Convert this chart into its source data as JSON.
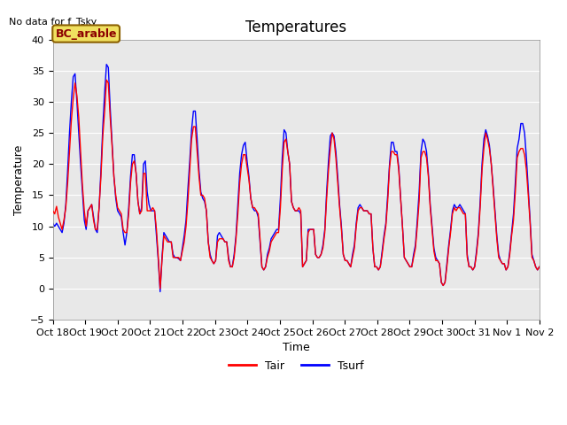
{
  "title": "Temperatures",
  "xlabel": "Time",
  "ylabel": "Temperature",
  "top_left_text": "No data for f_Tsky",
  "legend_box_label": "BC_arable",
  "legend_entries": [
    "Tair",
    "Tsurf"
  ],
  "ylim": [
    -5,
    40
  ],
  "yticks": [
    -5,
    0,
    5,
    10,
    15,
    20,
    25,
    30,
    35,
    40
  ],
  "xtick_labels": [
    "Oct 18",
    "Oct 19",
    "Oct 20",
    "Oct 21",
    "Oct 22",
    "Oct 23",
    "Oct 24",
    "Oct 25",
    "Oct 26",
    "Oct 27",
    "Oct 28",
    "Oct 29",
    "Oct 30",
    "Oct 31",
    "Nov 1",
    "Nov 2"
  ],
  "background_color": "#ffffff",
  "axes_facecolor": "#e8e8e8",
  "tair_data": [
    12.5,
    12.0,
    13.2,
    11.5,
    10.5,
    9.5,
    11.0,
    13.0,
    17.0,
    22.0,
    27.0,
    30.5,
    33.0,
    31.0,
    27.5,
    22.0,
    16.5,
    12.5,
    10.0,
    12.5,
    13.0,
    13.5,
    11.0,
    9.5,
    9.5,
    13.0,
    18.0,
    24.5,
    28.5,
    33.5,
    33.0,
    27.5,
    23.0,
    18.0,
    15.0,
    13.0,
    12.5,
    12.0,
    9.5,
    9.0,
    9.0,
    12.0,
    17.0,
    20.0,
    20.5,
    18.5,
    14.0,
    12.0,
    12.5,
    18.5,
    18.5,
    12.5,
    12.5,
    12.5,
    13.0,
    12.5,
    9.5,
    5.0,
    0.0,
    4.5,
    8.5,
    8.0,
    7.5,
    7.5,
    7.5,
    5.0,
    5.0,
    5.0,
    5.0,
    4.5,
    6.0,
    7.5,
    10.0,
    14.0,
    19.0,
    24.0,
    26.0,
    26.0,
    22.0,
    18.0,
    15.0,
    15.0,
    14.5,
    12.5,
    7.5,
    5.0,
    4.5,
    4.0,
    4.5,
    7.5,
    8.0,
    8.0,
    8.0,
    7.5,
    7.5,
    4.5,
    3.5,
    3.5,
    5.0,
    8.0,
    12.0,
    17.0,
    20.0,
    21.5,
    21.5,
    19.5,
    17.5,
    14.5,
    13.0,
    13.0,
    12.5,
    12.0,
    8.0,
    3.5,
    3.0,
    3.5,
    5.0,
    6.0,
    7.5,
    8.0,
    8.5,
    9.0,
    9.0,
    13.0,
    19.0,
    23.5,
    24.0,
    22.0,
    20.0,
    14.0,
    13.0,
    12.5,
    12.5,
    13.0,
    12.5,
    3.5,
    4.0,
    4.5,
    9.0,
    9.5,
    9.5,
    9.5,
    5.5,
    5.0,
    5.0,
    5.5,
    6.5,
    9.0,
    14.5,
    19.0,
    22.5,
    25.0,
    24.0,
    21.0,
    17.0,
    13.0,
    9.5,
    5.5,
    4.5,
    4.5,
    4.0,
    3.5,
    5.0,
    6.5,
    10.0,
    12.5,
    13.0,
    13.0,
    12.5,
    12.5,
    12.5,
    12.0,
    12.0,
    6.5,
    3.5,
    3.5,
    3.0,
    3.5,
    5.5,
    8.0,
    10.0,
    14.0,
    19.5,
    22.0,
    22.0,
    21.5,
    21.5,
    19.0,
    14.5,
    10.0,
    5.0,
    4.5,
    4.0,
    3.5,
    3.5,
    5.0,
    6.5,
    10.0,
    14.0,
    21.0,
    22.0,
    22.0,
    21.0,
    18.0,
    13.0,
    9.5,
    6.0,
    4.5,
    4.5,
    4.0,
    1.0,
    0.5,
    1.0,
    3.5,
    6.5,
    9.0,
    12.0,
    13.0,
    12.5,
    13.0,
    13.0,
    12.5,
    12.0,
    12.0,
    5.0,
    3.5,
    3.5,
    3.0,
    3.5,
    5.5,
    8.5,
    13.0,
    19.0,
    22.5,
    25.0,
    24.0,
    22.5,
    20.0,
    16.0,
    12.0,
    8.0,
    5.0,
    4.5,
    4.0,
    4.0,
    3.0,
    3.5,
    5.5,
    8.5,
    11.0,
    15.5,
    21.0,
    22.0,
    22.5,
    22.5,
    21.5,
    19.0,
    15.0,
    10.5,
    5.0,
    4.5,
    3.5,
    3.0,
    3.5
  ],
  "tsurf_data": [
    10.5,
    10.0,
    10.5,
    10.0,
    9.5,
    9.0,
    10.5,
    13.5,
    19.0,
    25.0,
    30.0,
    34.0,
    34.5,
    30.0,
    25.0,
    20.0,
    15.5,
    11.0,
    9.5,
    12.5,
    13.0,
    13.5,
    11.5,
    9.5,
    9.0,
    13.0,
    19.0,
    26.0,
    31.5,
    36.0,
    35.5,
    29.0,
    23.5,
    18.0,
    14.5,
    12.5,
    12.0,
    11.5,
    9.0,
    7.0,
    9.0,
    13.0,
    18.0,
    21.5,
    21.5,
    18.5,
    14.0,
    12.0,
    13.0,
    20.0,
    20.5,
    15.5,
    13.5,
    12.5,
    12.5,
    12.5,
    8.5,
    4.5,
    -0.5,
    5.0,
    9.0,
    8.5,
    8.0,
    7.5,
    7.5,
    5.5,
    5.0,
    5.0,
    4.8,
    4.5,
    6.5,
    8.5,
    11.0,
    16.0,
    20.5,
    25.5,
    28.5,
    28.5,
    24.0,
    19.0,
    15.5,
    14.5,
    14.0,
    12.5,
    7.5,
    5.5,
    4.5,
    4.0,
    4.5,
    8.5,
    9.0,
    8.5,
    8.0,
    7.5,
    7.5,
    5.0,
    3.5,
    3.5,
    5.5,
    8.5,
    13.5,
    18.5,
    21.5,
    23.0,
    23.5,
    20.5,
    18.0,
    14.5,
    13.0,
    12.5,
    12.5,
    11.5,
    7.5,
    3.5,
    3.0,
    3.5,
    5.5,
    6.5,
    8.0,
    8.5,
    9.0,
    9.5,
    9.5,
    14.5,
    21.0,
    25.5,
    25.0,
    22.0,
    20.0,
    14.0,
    13.0,
    12.5,
    12.5,
    12.5,
    12.0,
    3.5,
    4.0,
    4.5,
    9.5,
    9.5,
    9.5,
    9.5,
    5.5,
    5.0,
    5.0,
    5.5,
    7.0,
    9.5,
    15.5,
    20.5,
    24.5,
    25.0,
    24.5,
    22.0,
    18.0,
    13.5,
    10.0,
    5.5,
    4.5,
    4.5,
    4.0,
    3.5,
    5.5,
    7.0,
    10.5,
    13.0,
    13.5,
    13.0,
    12.5,
    12.5,
    12.5,
    12.0,
    12.0,
    6.5,
    3.5,
    3.5,
    3.0,
    3.5,
    6.0,
    8.5,
    10.5,
    15.0,
    20.0,
    23.5,
    23.5,
    22.0,
    22.0,
    19.5,
    14.5,
    10.0,
    5.0,
    4.5,
    4.0,
    3.5,
    3.5,
    5.5,
    7.0,
    11.0,
    15.5,
    22.0,
    24.0,
    23.5,
    22.0,
    18.5,
    13.5,
    10.0,
    6.5,
    5.0,
    4.5,
    4.0,
    1.0,
    0.5,
    1.0,
    4.0,
    7.0,
    9.5,
    12.5,
    13.5,
    13.0,
    13.0,
    13.5,
    13.0,
    12.5,
    12.0,
    5.5,
    3.5,
    3.5,
    3.0,
    3.5,
    6.0,
    9.0,
    14.0,
    20.0,
    24.0,
    25.5,
    24.5,
    23.0,
    20.0,
    16.5,
    12.5,
    8.5,
    5.5,
    4.5,
    4.0,
    4.0,
    3.0,
    3.5,
    6.0,
    9.0,
    12.0,
    17.0,
    22.5,
    24.0,
    26.5,
    26.5,
    25.0,
    21.0,
    16.0,
    11.0,
    5.5,
    4.5,
    3.5,
    3.0,
    3.5
  ],
  "title_fontsize": 12,
  "label_fontsize": 9,
  "tick_fontsize": 8,
  "legend_fontsize": 9,
  "linewidth": 1.0
}
